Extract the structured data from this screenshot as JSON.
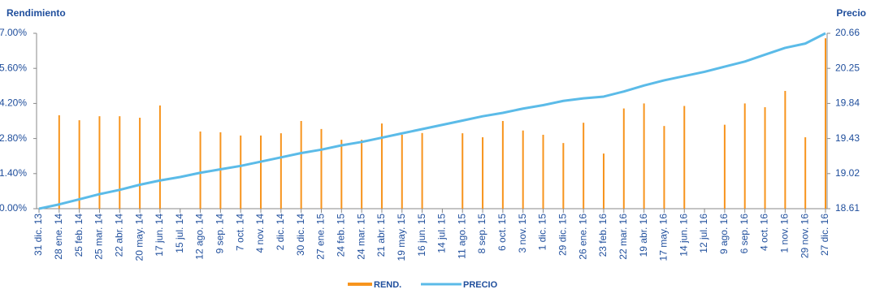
{
  "chart_data": {
    "type": "combo",
    "ylabel": "Rendimiento",
    "y2label": "Precio",
    "categories": [
      "31 dic. 13",
      "28 ene. 14",
      "25 feb. 14",
      "25 mar. 14",
      "22 abr. 14",
      "20 may. 14",
      "17 jun. 14",
      "15 jul. 14",
      "12 ago. 14",
      "9 sep. 14",
      "7 oct. 14",
      "4 nov. 14",
      "2 dic. 14",
      "30 dic. 14",
      "27 ene. 15",
      "24 feb. 15",
      "24 mar. 15",
      "21 abr. 15",
      "19 may. 15",
      "16 jun. 15",
      "14 jul. 15",
      "11 ago. 15",
      "8 sep. 15",
      "6 oct. 15",
      "3 nov. 15",
      "1 dic. 15",
      "29 dic. 15",
      "26 ene. 16",
      "23 feb. 16",
      "22 mar. 16",
      "19 abr. 16",
      "17 may. 16",
      "14 jun. 16",
      "12 jul. 16",
      "9 ago. 16",
      "6 sep. 16",
      "4 oct. 16",
      "1 nov. 16",
      "29 nov. 16",
      "27 dic. 16"
    ],
    "series": [
      {
        "name": "REND.",
        "type": "bar",
        "color": "#f7941d",
        "values": [
          null,
          3.73,
          3.53,
          3.69,
          3.69,
          3.63,
          4.12,
          null,
          3.08,
          3.05,
          2.92,
          2.92,
          3.01,
          3.5,
          3.18,
          2.75,
          2.75,
          3.4,
          2.95,
          3.02,
          null,
          3.01,
          2.85,
          3.5,
          3.12,
          2.95,
          2.62,
          3.43,
          2.2,
          4.0,
          4.2,
          3.3,
          4.1,
          null,
          3.35,
          4.2,
          4.05,
          4.7,
          2.85,
          6.8
        ]
      },
      {
        "name": "PRECIO",
        "type": "line",
        "color": "#5bbbe8",
        "axis": "y2",
        "values": [
          18.61,
          18.66,
          18.72,
          18.78,
          18.83,
          18.89,
          18.94,
          18.98,
          19.03,
          19.07,
          19.11,
          19.16,
          19.21,
          19.26,
          19.3,
          19.35,
          19.39,
          19.44,
          19.49,
          19.54,
          19.59,
          19.64,
          19.69,
          19.73,
          19.78,
          19.82,
          19.87,
          19.9,
          19.92,
          19.98,
          20.05,
          20.11,
          20.16,
          20.21,
          20.27,
          20.33,
          20.41,
          20.49,
          20.54,
          20.66
        ]
      }
    ],
    "ylim": [
      0,
      7
    ],
    "yticks": [
      {
        "value": 0,
        "label": "0.00%"
      },
      {
        "value": 1.4,
        "label": "1.40%"
      },
      {
        "value": 2.8,
        "label": "2.80%"
      },
      {
        "value": 4.2,
        "label": "4.20%"
      },
      {
        "value": 5.6,
        "label": "5.60%"
      },
      {
        "value": 7,
        "label": "7.00%"
      }
    ],
    "y2lim": [
      18.61,
      20.66
    ],
    "y2ticks": [
      18.61,
      19.02,
      19.43,
      19.84,
      20.25,
      20.66
    ],
    "grid": false,
    "legend": "bottom"
  }
}
